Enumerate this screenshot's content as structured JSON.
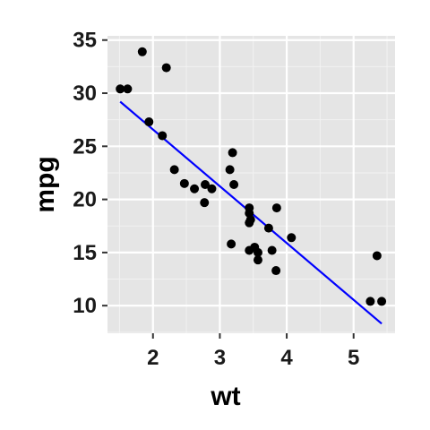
{
  "chart_data": {
    "type": "scatter",
    "title": "",
    "xlabel": "wt",
    "ylabel": "mpg",
    "xlim": [
      1.32,
      5.62
    ],
    "ylim": [
      7.4,
      35.4
    ],
    "x_ticks": [
      2,
      3,
      4,
      5
    ],
    "y_ticks": [
      10,
      15,
      20,
      25,
      30,
      35
    ],
    "grid": true,
    "legend": "none",
    "points": [
      {
        "x": 1.51,
        "y": 30.4
      },
      {
        "x": 1.62,
        "y": 30.4
      },
      {
        "x": 1.84,
        "y": 33.9
      },
      {
        "x": 1.94,
        "y": 27.3
      },
      {
        "x": 2.14,
        "y": 26.0
      },
      {
        "x": 2.2,
        "y": 32.4
      },
      {
        "x": 2.32,
        "y": 22.8
      },
      {
        "x": 2.47,
        "y": 21.5
      },
      {
        "x": 2.62,
        "y": 21.0
      },
      {
        "x": 2.77,
        "y": 19.7
      },
      {
        "x": 2.78,
        "y": 21.4
      },
      {
        "x": 2.88,
        "y": 21.0
      },
      {
        "x": 3.15,
        "y": 22.8
      },
      {
        "x": 3.17,
        "y": 15.8
      },
      {
        "x": 3.19,
        "y": 24.4
      },
      {
        "x": 3.21,
        "y": 21.4
      },
      {
        "x": 3.44,
        "y": 18.7
      },
      {
        "x": 3.44,
        "y": 19.2
      },
      {
        "x": 3.44,
        "y": 17.8
      },
      {
        "x": 3.44,
        "y": 15.2
      },
      {
        "x": 3.46,
        "y": 18.1
      },
      {
        "x": 3.52,
        "y": 15.5
      },
      {
        "x": 3.57,
        "y": 14.3
      },
      {
        "x": 3.57,
        "y": 15.0
      },
      {
        "x": 3.73,
        "y": 17.3
      },
      {
        "x": 3.78,
        "y": 15.2
      },
      {
        "x": 3.84,
        "y": 13.3
      },
      {
        "x": 3.85,
        "y": 19.2
      },
      {
        "x": 4.07,
        "y": 16.4
      },
      {
        "x": 5.25,
        "y": 10.4
      },
      {
        "x": 5.35,
        "y": 14.7
      },
      {
        "x": 5.42,
        "y": 10.4
      }
    ],
    "fit_line": {
      "x": [
        1.51,
        5.42
      ],
      "y": [
        29.2,
        8.3
      ],
      "color": "#0000ff"
    },
    "colors": {
      "panel": "#e5e5e5",
      "grid_major": "#ffffff",
      "grid_minor": "#f2f2f2",
      "point": "#000000"
    }
  }
}
